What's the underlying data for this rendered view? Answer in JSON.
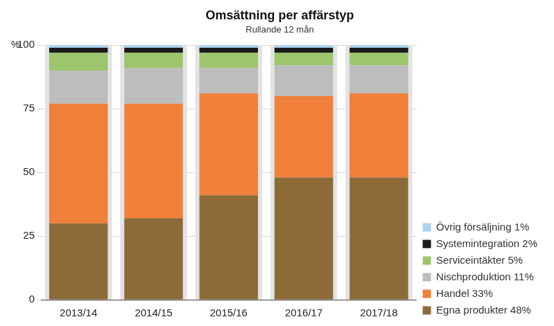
{
  "chart_data": {
    "type": "bar",
    "title": "Omsättning per affärstyp",
    "subtitle": "Rullande 12 mån",
    "ylabel": "%",
    "categories": [
      "2013/14",
      "2014/15",
      "2015/16",
      "2016/17",
      "2017/18"
    ],
    "series": [
      {
        "name": "Egna produkter 48%",
        "color": "#8c6b38",
        "values": [
          30,
          32,
          41,
          48,
          48
        ]
      },
      {
        "name": "Handel 33%",
        "color": "#f0803a",
        "values": [
          47,
          45,
          40,
          32,
          33
        ]
      },
      {
        "name": "Nischproduktion 11%",
        "color": "#bdbdbd",
        "values": [
          13,
          14,
          10,
          12,
          11
        ]
      },
      {
        "name": "Serviceintäkter 5%",
        "color": "#9cc56e",
        "values": [
          7,
          6,
          6,
          5,
          5
        ]
      },
      {
        "name": "Systemintegration 2%",
        "color": "#1a1a1a",
        "values": [
          2,
          2,
          2,
          2,
          2
        ]
      },
      {
        "name": "Övrig försäljning 1%",
        "color": "#a8d2ef",
        "values": [
          1,
          1,
          1,
          1,
          1
        ]
      }
    ],
    "stacked": true,
    "legend": "right",
    "grid": true,
    "ylim": [
      0,
      100
    ],
    "yticks": [
      0,
      25,
      50,
      75,
      100
    ]
  }
}
